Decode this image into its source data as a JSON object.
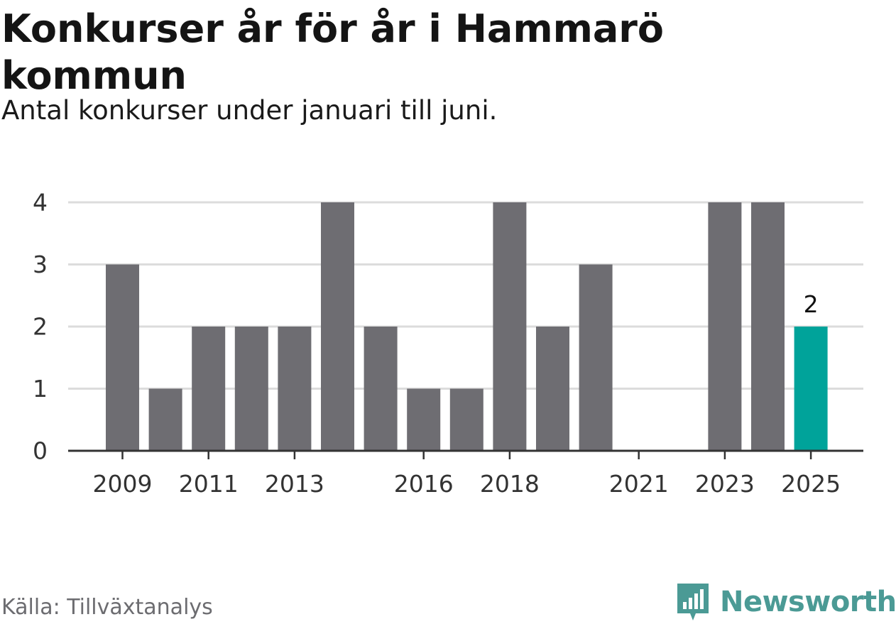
{
  "header": {
    "title": "Konkurser år för år i Hammarö kommun",
    "subtitle": "Antal konkurser under januari till juni."
  },
  "footer": {
    "source": "Källa: Tillväxtanalys",
    "brand": "Newsworthy",
    "brand_icon": "bar-chart-speech-bubble-icon",
    "brand_color": "#4b9a95"
  },
  "chart_data": {
    "type": "bar",
    "categories": [
      "2009",
      "2010",
      "2011",
      "2012",
      "2013",
      "2014",
      "2015",
      "2016",
      "2017",
      "2018",
      "2019",
      "2020",
      "2021",
      "2022",
      "2023",
      "2024",
      "2025"
    ],
    "values": [
      3,
      1,
      2,
      2,
      2,
      4,
      2,
      1,
      1,
      4,
      2,
      3,
      0,
      0,
      4,
      4,
      2
    ],
    "x_tick_labels": [
      "2009",
      "2011",
      "2013",
      "2016",
      "2018",
      "2021",
      "2023",
      "2025"
    ],
    "y_ticks": [
      0,
      1,
      2,
      3,
      4
    ],
    "ylim": [
      0,
      4
    ],
    "grid": true,
    "highlight": {
      "category": "2025",
      "label": "2"
    },
    "colors": {
      "bar": "#6e6d72",
      "highlight": "#00a39a",
      "grid": "#dcdcdc",
      "axis": "#333333"
    },
    "title": "Konkurser år för år i Hammarö kommun",
    "subtitle": "Antal konkurser under januari till juni.",
    "xlabel": "",
    "ylabel": ""
  }
}
